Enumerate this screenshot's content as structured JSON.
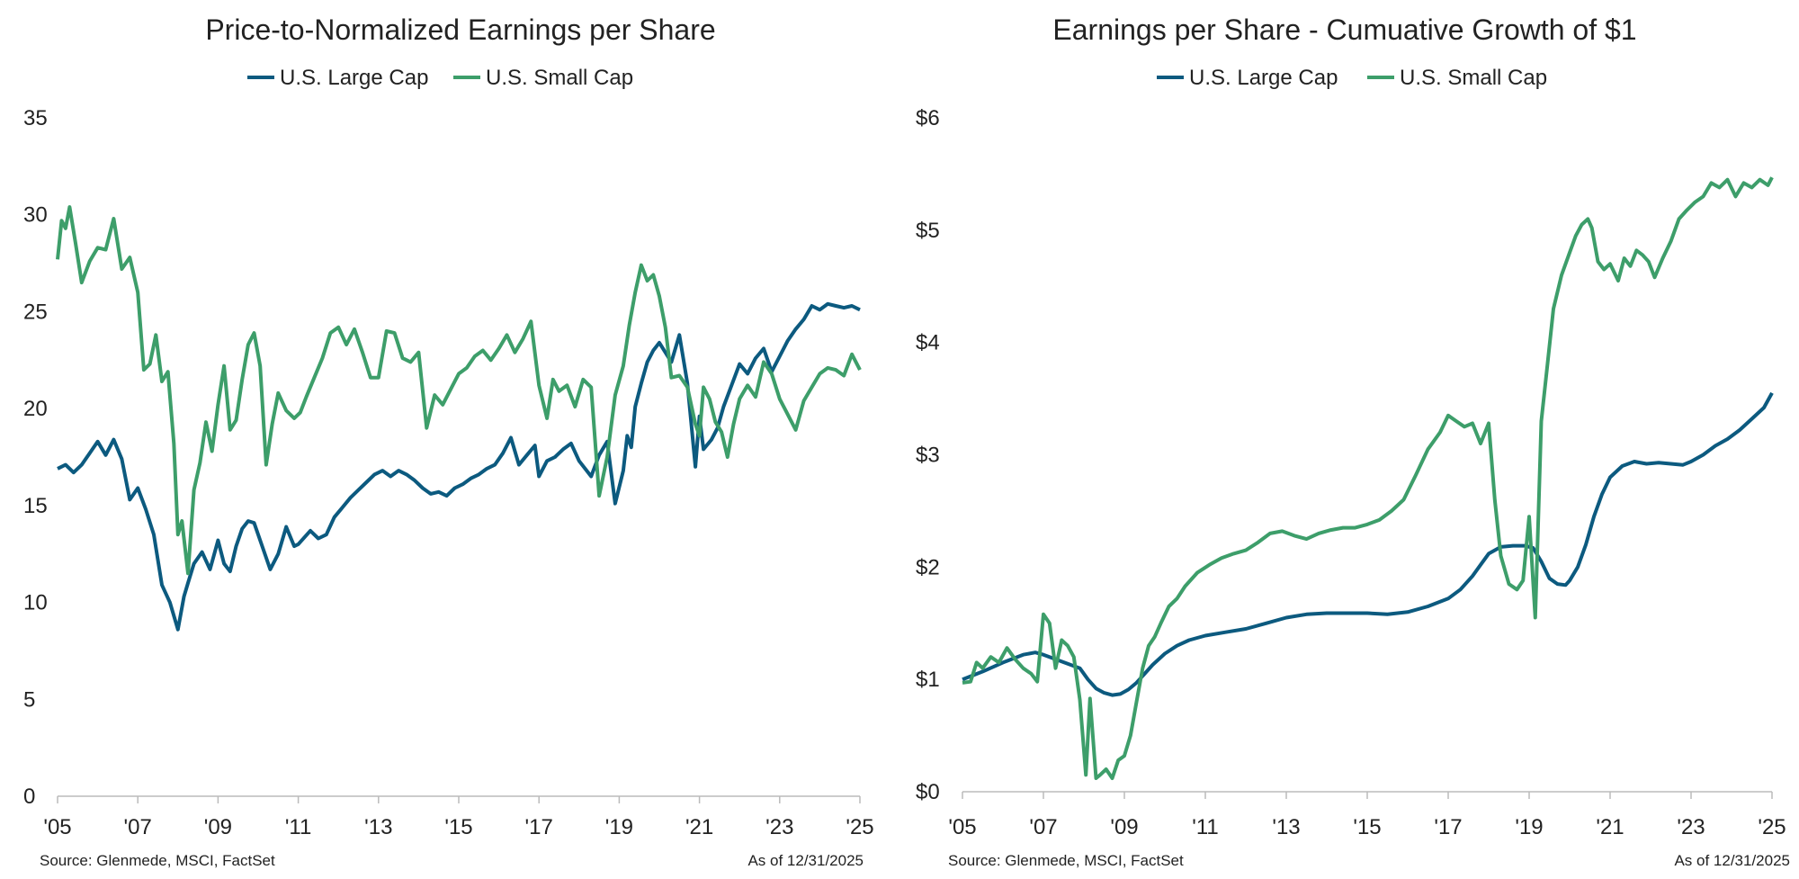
{
  "colors": {
    "large_cap": "#0c5a7f",
    "small_cap": "#3d9e6a"
  },
  "chart_data": [
    {
      "type": "line",
      "title": "Price-to-Normalized Earnings per Share",
      "xlabel": "",
      "ylabel": "",
      "xlim": [
        2005,
        2025
      ],
      "ylim": [
        0,
        35
      ],
      "yticks": [
        0,
        5,
        10,
        15,
        20,
        25,
        30,
        35
      ],
      "ytick_labels": [
        "0",
        "5",
        "10",
        "15",
        "20",
        "25",
        "30",
        "35"
      ],
      "xticks": [
        2005,
        2007,
        2009,
        2011,
        2013,
        2015,
        2017,
        2019,
        2021,
        2023,
        2025
      ],
      "xtick_labels": [
        "'05",
        "'07",
        "'09",
        "'11",
        "'13",
        "'15",
        "'17",
        "'19",
        "'21",
        "'23",
        "'25"
      ],
      "legend_position": "top-center",
      "source": "Source: Glenmede, MSCI, FactSet",
      "asof": "As of 12/31/2025",
      "series": [
        {
          "name": "U.S. Large Cap",
          "color_key": "large_cap",
          "x": [
            2005.0,
            2005.2,
            2005.4,
            2005.6,
            2005.8,
            2006.0,
            2006.2,
            2006.4,
            2006.6,
            2006.8,
            2007.0,
            2007.2,
            2007.4,
            2007.6,
            2007.8,
            2008.0,
            2008.15,
            2008.25,
            2008.4,
            2008.6,
            2008.8,
            2009.0,
            2009.15,
            2009.3,
            2009.45,
            2009.6,
            2009.75,
            2009.9,
            2010.1,
            2010.3,
            2010.5,
            2010.7,
            2010.9,
            2011.0,
            2011.3,
            2011.5,
            2011.7,
            2011.9,
            2012.1,
            2012.3,
            2012.5,
            2012.7,
            2012.9,
            2013.1,
            2013.3,
            2013.5,
            2013.7,
            2013.9,
            2014.1,
            2014.3,
            2014.5,
            2014.7,
            2014.9,
            2015.1,
            2015.3,
            2015.5,
            2015.7,
            2015.9,
            2016.1,
            2016.3,
            2016.5,
            2016.7,
            2016.9,
            2017.0,
            2017.2,
            2017.4,
            2017.6,
            2017.8,
            2018.0,
            2018.3,
            2018.5,
            2018.7,
            2018.9,
            2019.1,
            2019.2,
            2019.3,
            2019.4,
            2019.55,
            2019.7,
            2019.85,
            2020.0,
            2020.3,
            2020.5,
            2020.7,
            2020.9,
            2021.0,
            2021.1,
            2021.3,
            2021.45,
            2021.6,
            2021.8,
            2022.0,
            2022.2,
            2022.4,
            2022.6,
            2022.8,
            2023.0,
            2023.2,
            2023.4,
            2023.6,
            2023.8,
            2024.0,
            2024.2,
            2024.4,
            2024.6,
            2024.8,
            2025.0
          ],
          "y": [
            16.9,
            17.1,
            16.7,
            17.1,
            17.7,
            18.3,
            17.6,
            18.4,
            17.4,
            15.3,
            15.9,
            14.8,
            13.5,
            10.9,
            10.0,
            8.6,
            10.3,
            11.0,
            12.0,
            12.6,
            11.7,
            13.2,
            12.0,
            11.6,
            12.9,
            13.8,
            14.2,
            14.1,
            12.9,
            11.7,
            12.5,
            13.9,
            12.9,
            13.0,
            13.7,
            13.3,
            13.5,
            14.4,
            14.9,
            15.4,
            15.8,
            16.2,
            16.6,
            16.8,
            16.5,
            16.8,
            16.6,
            16.3,
            15.9,
            15.6,
            15.7,
            15.5,
            15.9,
            16.1,
            16.4,
            16.6,
            16.9,
            17.1,
            17.7,
            18.5,
            17.1,
            17.6,
            18.1,
            16.5,
            17.3,
            17.5,
            17.9,
            18.2,
            17.3,
            16.5,
            17.6,
            18.3,
            15.1,
            16.8,
            18.6,
            18.0,
            20.1,
            21.3,
            22.4,
            23.0,
            23.4,
            22.4,
            23.8,
            21.3,
            17.0,
            19.6,
            17.9,
            18.4,
            19.0,
            20.1,
            21.2,
            22.3,
            21.8,
            22.6,
            23.1,
            21.9,
            22.7,
            23.5,
            24.1,
            24.6,
            25.3,
            25.1,
            25.4,
            25.3,
            25.2,
            25.3,
            25.1
          ]
        },
        {
          "name": "U.S. Small Cap",
          "color_key": "small_cap",
          "x": [
            2005.0,
            2005.1,
            2005.2,
            2005.3,
            2005.45,
            2005.6,
            2005.8,
            2006.0,
            2006.2,
            2006.4,
            2006.6,
            2006.8,
            2007.0,
            2007.15,
            2007.3,
            2007.45,
            2007.6,
            2007.75,
            2007.9,
            2008.0,
            2008.1,
            2008.25,
            2008.4,
            2008.55,
            2008.7,
            2008.85,
            2009.0,
            2009.15,
            2009.3,
            2009.45,
            2009.6,
            2009.75,
            2009.9,
            2010.05,
            2010.2,
            2010.35,
            2010.5,
            2010.7,
            2010.9,
            2011.05,
            2011.2,
            2011.4,
            2011.6,
            2011.8,
            2012.0,
            2012.2,
            2012.4,
            2012.6,
            2012.8,
            2013.0,
            2013.2,
            2013.4,
            2013.6,
            2013.8,
            2014.0,
            2014.2,
            2014.4,
            2014.6,
            2014.8,
            2015.0,
            2015.2,
            2015.4,
            2015.6,
            2015.8,
            2016.0,
            2016.2,
            2016.4,
            2016.6,
            2016.8,
            2017.0,
            2017.2,
            2017.35,
            2017.5,
            2017.7,
            2017.9,
            2018.1,
            2018.3,
            2018.5,
            2018.7,
            2018.9,
            2019.1,
            2019.25,
            2019.4,
            2019.55,
            2019.7,
            2019.85,
            2020.0,
            2020.15,
            2020.3,
            2020.5,
            2020.7,
            2020.9,
            2021.0,
            2021.1,
            2021.25,
            2021.4,
            2021.55,
            2021.7,
            2021.85,
            2022.0,
            2022.2,
            2022.4,
            2022.6,
            2022.8,
            2023.0,
            2023.2,
            2023.4,
            2023.6,
            2023.8,
            2024.0,
            2024.2,
            2024.4,
            2024.6,
            2024.8,
            2025.0
          ],
          "y": [
            27.7,
            29.7,
            29.3,
            30.4,
            28.5,
            26.5,
            27.6,
            28.3,
            28.2,
            29.8,
            27.2,
            27.8,
            26.0,
            22.0,
            22.3,
            23.8,
            21.4,
            21.9,
            18.2,
            13.5,
            14.2,
            11.5,
            15.8,
            17.2,
            19.3,
            17.8,
            20.2,
            22.2,
            18.9,
            19.4,
            21.5,
            23.3,
            23.9,
            22.2,
            17.1,
            19.2,
            20.8,
            19.9,
            19.5,
            19.8,
            20.6,
            21.6,
            22.6,
            23.9,
            24.2,
            23.3,
            24.1,
            22.9,
            21.6,
            21.6,
            24.0,
            23.9,
            22.6,
            22.4,
            22.9,
            19.0,
            20.7,
            20.2,
            21.0,
            21.8,
            22.1,
            22.7,
            23.0,
            22.5,
            23.1,
            23.8,
            22.9,
            23.6,
            24.5,
            21.2,
            19.5,
            21.5,
            20.9,
            21.2,
            20.1,
            21.5,
            21.1,
            15.5,
            17.5,
            20.7,
            22.2,
            24.3,
            26.0,
            27.4,
            26.6,
            26.9,
            25.8,
            24.2,
            21.6,
            21.7,
            21.1,
            19.2,
            18.6,
            21.1,
            20.5,
            19.3,
            18.8,
            17.5,
            19.2,
            20.5,
            21.2,
            20.6,
            22.4,
            21.8,
            20.5,
            19.7,
            18.9,
            20.4,
            21.1,
            21.8,
            22.1,
            22.0,
            21.7,
            22.8,
            22.0
          ]
        }
      ]
    },
    {
      "type": "line",
      "title": "Earnings per Share - Cumuative Growth of $1",
      "xlabel": "",
      "ylabel": "",
      "xlim": [
        2005,
        2025
      ],
      "ylim": [
        0,
        6
      ],
      "yticks": [
        0,
        1,
        2,
        3,
        4,
        5,
        6
      ],
      "ytick_labels": [
        "$0",
        "$1",
        "$2",
        "$3",
        "$4",
        "$5",
        "$6"
      ],
      "xticks": [
        2005,
        2007,
        2009,
        2011,
        2013,
        2015,
        2017,
        2019,
        2021,
        2023,
        2025
      ],
      "xtick_labels": [
        "'05",
        "'07",
        "'09",
        "'11",
        "'13",
        "'15",
        "'17",
        "'19",
        "'21",
        "'23",
        "'25"
      ],
      "legend_position": "top-center",
      "source": "Source: Glenmede, MSCI, FactSet",
      "asof": "As of 12/31/2025",
      "series": [
        {
          "name": "U.S. Large Cap",
          "color_key": "large_cap",
          "x": [
            2005.0,
            2005.5,
            2006.0,
            2006.5,
            2006.8,
            2007.0,
            2007.3,
            2007.6,
            2007.9,
            2008.1,
            2008.3,
            2008.5,
            2008.7,
            2008.9,
            2009.1,
            2009.3,
            2009.5,
            2009.7,
            2010.0,
            2010.3,
            2010.6,
            2011.0,
            2011.5,
            2012.0,
            2012.5,
            2013.0,
            2013.5,
            2014.0,
            2014.5,
            2015.0,
            2015.5,
            2016.0,
            2016.5,
            2017.0,
            2017.3,
            2017.6,
            2017.8,
            2018.0,
            2018.3,
            2018.6,
            2018.9,
            2019.1,
            2019.3,
            2019.5,
            2019.7,
            2019.9,
            2020.0,
            2020.2,
            2020.4,
            2020.6,
            2020.8,
            2021.0,
            2021.3,
            2021.6,
            2021.9,
            2022.2,
            2022.5,
            2022.8,
            2023.0,
            2023.3,
            2023.6,
            2023.9,
            2024.2,
            2024.5,
            2024.8,
            2025.0
          ],
          "y": [
            1.0,
            1.07,
            1.15,
            1.22,
            1.24,
            1.22,
            1.18,
            1.14,
            1.1,
            1.0,
            0.92,
            0.88,
            0.86,
            0.87,
            0.91,
            0.97,
            1.05,
            1.13,
            1.23,
            1.3,
            1.35,
            1.39,
            1.42,
            1.45,
            1.5,
            1.55,
            1.58,
            1.59,
            1.59,
            1.59,
            1.58,
            1.6,
            1.65,
            1.72,
            1.8,
            1.92,
            2.02,
            2.12,
            2.18,
            2.19,
            2.19,
            2.17,
            2.05,
            1.9,
            1.85,
            1.84,
            1.88,
            2.0,
            2.2,
            2.45,
            2.65,
            2.8,
            2.9,
            2.94,
            2.92,
            2.93,
            2.92,
            2.91,
            2.94,
            3.0,
            3.08,
            3.14,
            3.22,
            3.32,
            3.42,
            3.55
          ]
        },
        {
          "name": "U.S. Small Cap",
          "color_key": "small_cap",
          "x": [
            2005.0,
            2005.2,
            2005.35,
            2005.5,
            2005.7,
            2005.9,
            2006.1,
            2006.3,
            2006.5,
            2006.7,
            2006.85,
            2007.0,
            2007.15,
            2007.3,
            2007.45,
            2007.6,
            2007.75,
            2007.9,
            2008.05,
            2008.15,
            2008.3,
            2008.4,
            2008.55,
            2008.7,
            2008.85,
            2009.0,
            2009.15,
            2009.3,
            2009.45,
            2009.6,
            2009.75,
            2009.9,
            2010.1,
            2010.3,
            2010.5,
            2010.8,
            2011.1,
            2011.4,
            2011.7,
            2012.0,
            2012.3,
            2012.6,
            2012.9,
            2013.2,
            2013.5,
            2013.8,
            2014.1,
            2014.4,
            2014.7,
            2015.0,
            2015.3,
            2015.6,
            2015.9,
            2016.2,
            2016.5,
            2016.8,
            2017.0,
            2017.2,
            2017.4,
            2017.6,
            2017.8,
            2018.0,
            2018.15,
            2018.3,
            2018.5,
            2018.7,
            2018.85,
            2019.0,
            2019.15,
            2019.3,
            2019.45,
            2019.6,
            2019.8,
            2020.0,
            2020.15,
            2020.3,
            2020.45,
            2020.55,
            2020.7,
            2020.85,
            2021.0,
            2021.2,
            2021.35,
            2021.5,
            2021.65,
            2021.8,
            2021.95,
            2022.1,
            2022.3,
            2022.5,
            2022.7,
            2022.9,
            2023.1,
            2023.3,
            2023.5,
            2023.7,
            2023.9,
            2024.1,
            2024.3,
            2024.5,
            2024.7,
            2024.9,
            2025.0
          ],
          "y": [
            0.97,
            0.98,
            1.15,
            1.1,
            1.2,
            1.15,
            1.28,
            1.18,
            1.1,
            1.05,
            0.98,
            1.58,
            1.5,
            1.1,
            1.35,
            1.3,
            1.2,
            0.82,
            0.15,
            0.83,
            0.12,
            0.15,
            0.2,
            0.12,
            0.28,
            0.32,
            0.5,
            0.8,
            1.1,
            1.3,
            1.38,
            1.5,
            1.65,
            1.72,
            1.83,
            1.95,
            2.02,
            2.08,
            2.12,
            2.15,
            2.22,
            2.3,
            2.32,
            2.28,
            2.25,
            2.3,
            2.33,
            2.35,
            2.35,
            2.38,
            2.42,
            2.5,
            2.6,
            2.82,
            3.05,
            3.2,
            3.35,
            3.3,
            3.25,
            3.28,
            3.1,
            3.28,
            2.6,
            2.1,
            1.85,
            1.8,
            1.88,
            2.45,
            1.55,
            3.3,
            3.8,
            4.3,
            4.6,
            4.8,
            4.95,
            5.05,
            5.1,
            5.02,
            4.72,
            4.65,
            4.7,
            4.55,
            4.75,
            4.68,
            4.82,
            4.78,
            4.72,
            4.58,
            4.75,
            4.9,
            5.1,
            5.18,
            5.25,
            5.3,
            5.42,
            5.38,
            5.45,
            5.3,
            5.42,
            5.38,
            5.45,
            5.4,
            5.47
          ]
        }
      ]
    }
  ]
}
